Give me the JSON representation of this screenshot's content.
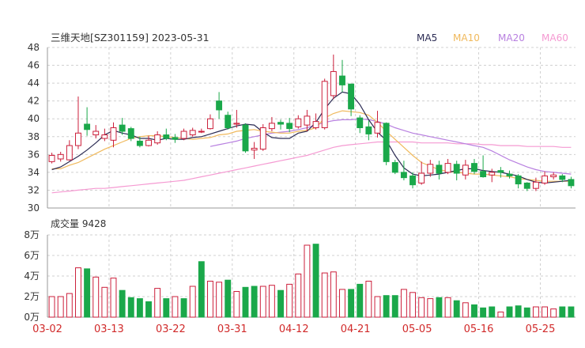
{
  "chart_data": {
    "type": "candlestick",
    "title": "三维天地[SZ301159] 2023-05-31",
    "legend": [
      {
        "name": "MA5",
        "color": "#2c2c54"
      },
      {
        "name": "MA10",
        "color": "#f0b95c"
      },
      {
        "name": "MA20",
        "color": "#b880e0"
      },
      {
        "name": "MA60",
        "color": "#f59ad2"
      }
    ],
    "price_axis": {
      "ticks": [
        "48",
        "46",
        "44",
        "42",
        "40",
        "38",
        "36",
        "34",
        "32",
        "30"
      ],
      "min": 30,
      "max": 48
    },
    "volume_title": "成交量 9428",
    "volume_axis": {
      "ticks": [
        "8万",
        "6万",
        "4万",
        "2万",
        "0万"
      ],
      "min": 0,
      "max": 8
    },
    "x_ticks": [
      {
        "label": "03-02",
        "index": 0
      },
      {
        "label": "03-13",
        "index": 7
      },
      {
        "label": "03-22",
        "index": 14
      },
      {
        "label": "03-31",
        "index": 21
      },
      {
        "label": "04-12",
        "index": 28
      },
      {
        "label": "04-21",
        "index": 35
      },
      {
        "label": "05-05",
        "index": 42
      },
      {
        "label": "05-16",
        "index": 49
      },
      {
        "label": "05-25",
        "index": 56
      }
    ],
    "colors": {
      "up": "#cc1f3b",
      "down": "#1aa84a",
      "grid": "#d0d0d0",
      "axis": "#999999",
      "tick": "#333333",
      "xlabel": "#d12a2a"
    },
    "candles": [
      [
        35.2,
        35.9,
        36.2,
        35.0
      ],
      [
        35.5,
        36.0,
        36.3,
        35.2
      ],
      [
        35.4,
        37.0,
        37.6,
        35.3
      ],
      [
        37.0,
        38.4,
        42.5,
        36.6
      ],
      [
        39.4,
        38.8,
        41.3,
        38.1
      ],
      [
        38.2,
        38.6,
        39.3,
        37.8
      ],
      [
        37.8,
        38.2,
        38.9,
        37.5
      ],
      [
        37.6,
        39.0,
        39.6,
        36.8
      ],
      [
        39.3,
        38.6,
        40.1,
        38.2
      ],
      [
        38.9,
        37.8,
        39.1,
        37.5
      ],
      [
        37.5,
        37.0,
        38.0,
        36.8
      ],
      [
        37.0,
        37.6,
        38.1,
        36.9
      ],
      [
        37.3,
        38.2,
        38.6,
        37.1
      ],
      [
        38.2,
        37.8,
        38.9,
        37.6
      ],
      [
        37.9,
        37.7,
        38.3,
        37.3
      ],
      [
        37.8,
        38.6,
        38.9,
        37.6
      ],
      [
        38.2,
        38.7,
        39.0,
        38.0
      ],
      [
        38.6,
        38.6,
        38.9,
        38.4
      ],
      [
        38.9,
        40.0,
        40.5,
        38.8
      ],
      [
        42.0,
        41.0,
        43.0,
        40.0
      ],
      [
        40.4,
        39.0,
        40.8,
        38.8
      ],
      [
        39.4,
        39.5,
        41.0,
        39.0
      ],
      [
        39.3,
        36.4,
        39.5,
        36.2
      ],
      [
        36.5,
        36.7,
        37.4,
        35.5
      ],
      [
        36.6,
        39.0,
        39.4,
        36.4
      ],
      [
        38.9,
        39.5,
        40.2,
        38.6
      ],
      [
        39.6,
        39.4,
        39.9,
        38.8
      ],
      [
        39.5,
        38.9,
        40.1,
        38.5
      ],
      [
        39.1,
        40.0,
        40.4,
        38.9
      ],
      [
        39.3,
        40.3,
        41.0,
        38.6
      ],
      [
        39.0,
        39.7,
        40.6,
        38.8
      ],
      [
        39.0,
        44.2,
        44.5,
        38.8
      ],
      [
        42.6,
        45.3,
        47.2,
        42.2
      ],
      [
        44.8,
        43.8,
        46.6,
        43.0
      ],
      [
        43.9,
        41.1,
        43.9,
        40.3
      ],
      [
        40.1,
        39.0,
        40.4,
        38.4
      ],
      [
        39.1,
        38.3,
        39.8,
        37.6
      ],
      [
        38.4,
        39.6,
        40.9,
        37.9
      ],
      [
        39.5,
        35.2,
        39.6,
        34.8
      ],
      [
        35.1,
        34.0,
        35.4,
        33.8
      ],
      [
        34.0,
        33.4,
        35.3,
        33.1
      ],
      [
        33.6,
        32.6,
        34.0,
        32.2
      ],
      [
        32.8,
        33.9,
        35.2,
        32.6
      ],
      [
        33.9,
        34.9,
        35.4,
        33.5
      ],
      [
        34.8,
        33.9,
        35.3,
        33.2
      ],
      [
        34.0,
        35.0,
        35.5,
        33.8
      ],
      [
        34.9,
        33.9,
        35.3,
        33.1
      ],
      [
        33.7,
        34.8,
        35.4,
        33.2
      ],
      [
        35.0,
        34.1,
        35.5,
        33.8
      ],
      [
        34.1,
        33.5,
        35.9,
        33.4
      ],
      [
        33.7,
        34.0,
        34.4,
        32.9
      ],
      [
        34.2,
        34.0,
        34.6,
        33.4
      ],
      [
        33.8,
        33.6,
        34.2,
        33.3
      ],
      [
        33.6,
        32.7,
        33.8,
        32.2
      ],
      [
        32.8,
        32.2,
        32.9,
        31.9
      ],
      [
        32.2,
        32.9,
        33.4,
        31.9
      ],
      [
        32.8,
        33.6,
        34.1,
        32.6
      ],
      [
        33.5,
        33.7,
        34.0,
        33.2
      ],
      [
        33.6,
        33.2,
        33.8,
        32.9
      ],
      [
        33.2,
        32.5,
        33.5,
        32.2
      ]
    ],
    "volume_up": [
      true,
      true,
      true,
      true,
      false,
      true,
      true,
      true,
      false,
      false,
      false,
      false,
      true,
      false,
      true,
      false,
      true,
      false,
      true,
      true,
      false,
      true,
      false,
      false,
      true,
      true,
      false,
      true,
      true,
      true,
      false,
      true,
      true,
      true,
      false,
      false,
      true,
      true,
      false,
      false,
      true,
      true,
      true,
      true,
      false,
      true,
      false,
      true,
      false,
      false,
      false,
      true,
      false,
      false,
      false,
      true,
      true,
      true,
      false,
      false
    ],
    "volumes": [
      2.0,
      2.0,
      2.3,
      4.8,
      4.7,
      3.9,
      2.9,
      3.8,
      2.6,
      1.9,
      1.8,
      1.5,
      2.8,
      1.8,
      2.0,
      1.8,
      3.0,
      5.4,
      3.5,
      3.4,
      3.6,
      2.5,
      2.9,
      3.0,
      3.0,
      3.1,
      2.6,
      3.2,
      4.2,
      7.0,
      7.1,
      4.3,
      4.4,
      2.7,
      2.7,
      3.2,
      3.5,
      2.0,
      2.1,
      2.1,
      2.7,
      2.4,
      1.9,
      1.8,
      1.9,
      1.9,
      1.6,
      1.4,
      1.2,
      0.9,
      1.0,
      0.5,
      1.0,
      1.1,
      0.9,
      1.0,
      1.0,
      0.8,
      1.0,
      1.0
    ],
    "ma5": [
      34.3,
      34.6,
      35.2,
      35.8,
      36.5,
      37.3,
      38.2,
      38.7,
      38.4,
      38.2,
      37.8,
      37.8,
      37.6,
      37.8,
      37.7,
      37.7,
      37.9,
      38.0,
      38.3,
      38.6,
      38.9,
      39.2,
      39.4,
      39.3,
      38.5,
      37.9,
      37.8,
      37.8,
      38.4,
      38.6,
      39.6,
      41.1,
      42.3,
      43.0,
      42.8,
      41.6,
      39.9,
      38.5,
      37.6,
      35.9,
      34.5,
      33.8,
      33.6,
      33.7,
      33.8,
      34.0,
      34.2,
      34.4,
      34.4,
      34.2,
      34.1,
      34.0,
      33.8,
      33.6,
      33.2,
      32.9,
      32.8,
      32.9,
      33.0,
      33.1
    ],
    "ma10": [
      34.4,
      34.4,
      34.8,
      35.1,
      35.6,
      36.1,
      36.6,
      37.0,
      37.4,
      37.8,
      38.0,
      38.1,
      38.1,
      38.0,
      37.9,
      37.8,
      37.7,
      37.8,
      37.9,
      38.2,
      38.3,
      38.6,
      38.7,
      38.8,
      38.6,
      38.5,
      38.4,
      38.4,
      38.6,
      38.7,
      39.0,
      40.1,
      40.6,
      40.9,
      40.8,
      40.7,
      40.4,
      39.6,
      38.6,
      37.7,
      36.8,
      35.9,
      35.1,
      34.7,
      34.3,
      34.1,
      34.0,
      33.9,
      33.8,
      33.8,
      33.7,
      33.6,
      33.5,
      33.3,
      33.2,
      33.1,
      33.0,
      33.0,
      33.0,
      33.0
    ],
    "ma20": [
      null,
      null,
      null,
      null,
      null,
      null,
      null,
      null,
      null,
      null,
      null,
      null,
      null,
      null,
      null,
      null,
      null,
      null,
      36.9,
      37.1,
      37.3,
      37.5,
      37.8,
      38.0,
      38.2,
      38.4,
      38.5,
      38.6,
      38.8,
      39.0,
      39.3,
      39.6,
      39.8,
      39.9,
      39.9,
      40.0,
      39.9,
      39.7,
      39.4,
      39.0,
      38.7,
      38.4,
      38.2,
      38.0,
      37.8,
      37.6,
      37.4,
      37.2,
      37.0,
      36.8,
      36.4,
      35.9,
      35.4,
      35.0,
      34.6,
      34.3,
      34.1,
      34.0,
      33.9,
      33.8
    ],
    "ma60": [
      31.7,
      31.8,
      31.9,
      32.0,
      32.1,
      32.2,
      32.2,
      32.3,
      32.4,
      32.5,
      32.6,
      32.7,
      32.8,
      32.9,
      33.0,
      33.1,
      33.3,
      33.5,
      33.7,
      33.9,
      34.1,
      34.3,
      34.5,
      34.7,
      34.9,
      35.1,
      35.3,
      35.5,
      35.7,
      35.9,
      36.2,
      36.5,
      36.8,
      37.0,
      37.1,
      37.2,
      37.3,
      37.4,
      37.4,
      37.4,
      37.4,
      37.4,
      37.3,
      37.3,
      37.3,
      37.3,
      37.2,
      37.2,
      37.2,
      37.1,
      37.1,
      37.0,
      37.0,
      37.0,
      36.9,
      36.9,
      36.9,
      36.9,
      36.8,
      36.8
    ]
  }
}
